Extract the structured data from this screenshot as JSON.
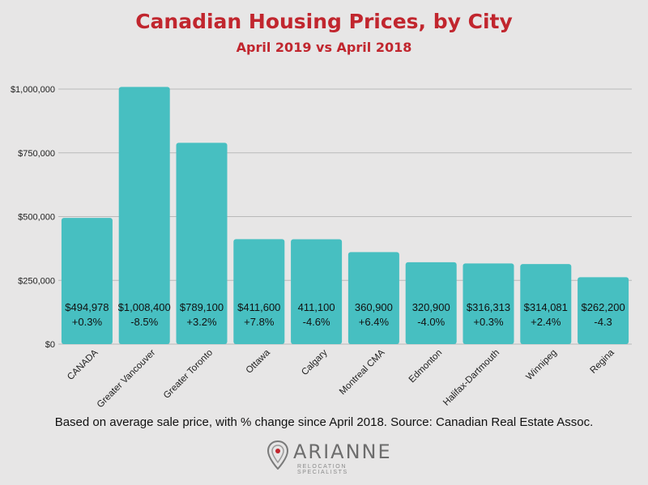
{
  "title": "Canadian Housing Prices, by City",
  "subtitle": "April 2019 vs April 2018",
  "footnote": "Based on average sale price, with % change since April 2018. Source: Canadian Real Estate Assoc.",
  "logo": {
    "name": "ARIANNE",
    "tagline": "RELOCATION SPECIALISTS"
  },
  "colors": {
    "bar": "#47bfc1",
    "title": "#c1262e",
    "grid": "#b9b9b9",
    "background": "#e7e6e6"
  },
  "chart_data": {
    "type": "bar",
    "title": "Canadian Housing Prices, by City",
    "subtitle": "April 2019 vs April 2018",
    "xlabel": "",
    "ylabel": "",
    "ylim": [
      0,
      1000000
    ],
    "yticks": [
      0,
      250000,
      500000,
      750000,
      1000000
    ],
    "ytick_labels": [
      "$0",
      "$250,000",
      "$500,000",
      "$750,000",
      "$1,000,000"
    ],
    "grid": true,
    "categories": [
      "CANADA",
      "Greater Vancouver",
      "Greater Toronto",
      "Ottawa",
      "Calgary",
      "Montreal CMA",
      "Edmonton",
      "Halifax-Dartmouth",
      "Winnipeg",
      "Regina"
    ],
    "values": [
      494978,
      1008400,
      789100,
      411600,
      411100,
      360900,
      320900,
      316313,
      314081,
      262200
    ],
    "value_labels": [
      "$494,978",
      "$1,008,400",
      "$789,100",
      "$411,600",
      "411,100",
      "360,900",
      "320,900",
      "$316,313",
      "$314,081",
      "$262,200"
    ],
    "change_labels": [
      "+0.3%",
      "-8.5%",
      "+3.2%",
      "+7.8%",
      "-4.6%",
      "+6.4%",
      "-4.0%",
      "+0.3%",
      "+2.4%",
      "-4.3"
    ]
  }
}
